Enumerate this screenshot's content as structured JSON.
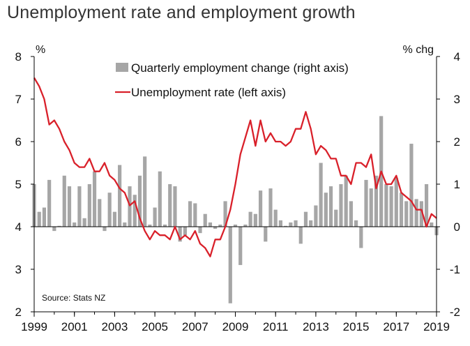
{
  "chart_data": {
    "type": "bar+line",
    "title": "Unemployment rate and employment growth",
    "left_axis_unit": "%",
    "right_axis_unit": "% chg",
    "left_ylim": [
      2,
      8
    ],
    "right_ylim": [
      -2,
      4
    ],
    "left_ticks": [
      "2",
      "3",
      "4",
      "5",
      "6",
      "7",
      "8"
    ],
    "right_ticks": [
      "-2",
      "-1",
      "0",
      "1",
      "2",
      "3",
      "4"
    ],
    "x_ticks": [
      "1999",
      "2001",
      "2003",
      "2005",
      "2007",
      "2009",
      "2011",
      "2013",
      "2015",
      "2017",
      "2019"
    ],
    "x_range": [
      1999.0,
      2019.0
    ],
    "source": "Source: Stats NZ",
    "bars": {
      "name": "Quarterly employment change (right axis)",
      "color": "#a6a6a6",
      "x": [
        1999.0,
        1999.25,
        1999.5,
        1999.75,
        2000.0,
        2000.25,
        2000.5,
        2000.75,
        2001.0,
        2001.25,
        2001.5,
        2001.75,
        2002.0,
        2002.25,
        2002.5,
        2002.75,
        2003.0,
        2003.25,
        2003.5,
        2003.75,
        2004.0,
        2004.25,
        2004.5,
        2004.75,
        2005.0,
        2005.25,
        2005.5,
        2005.75,
        2006.0,
        2006.25,
        2006.5,
        2006.75,
        2007.0,
        2007.25,
        2007.5,
        2007.75,
        2008.0,
        2008.25,
        2008.5,
        2008.75,
        2009.0,
        2009.25,
        2009.5,
        2009.75,
        2010.0,
        2010.25,
        2010.5,
        2010.75,
        2011.0,
        2011.25,
        2011.5,
        2011.75,
        2012.0,
        2012.25,
        2012.5,
        2012.75,
        2013.0,
        2013.25,
        2013.5,
        2013.75,
        2014.0,
        2014.25,
        2014.5,
        2014.75,
        2015.0,
        2015.25,
        2015.5,
        2015.75,
        2016.0,
        2016.25,
        2016.5,
        2016.75,
        2017.0,
        2017.25,
        2017.5,
        2017.75,
        2018.0,
        2018.25,
        2018.5,
        2018.75,
        2019.0
      ],
      "values": [
        1.0,
        0.35,
        0.45,
        1.1,
        -0.1,
        0.02,
        1.2,
        0.95,
        0.1,
        0.95,
        0.2,
        1.0,
        1.3,
        0.65,
        -0.1,
        0.8,
        0.35,
        1.45,
        0.1,
        0.95,
        0.75,
        1.2,
        1.65,
        0.05,
        0.45,
        1.3,
        0.05,
        1.0,
        0.95,
        -0.35,
        -0.2,
        0.6,
        0.55,
        -0.15,
        0.3,
        0.1,
        -0.05,
        0.05,
        0.6,
        -1.8,
        0.05,
        -0.9,
        0.05,
        0.35,
        0.3,
        0.85,
        -0.35,
        0.9,
        0.4,
        0.15,
        0.02,
        0.1,
        0.15,
        -0.4,
        0.35,
        0.15,
        0.5,
        1.5,
        0.8,
        0.95,
        0.4,
        1.0,
        1.2,
        0.6,
        0.15,
        -0.5,
        1.1,
        0.9,
        1.2,
        2.6,
        1.0,
        0.95,
        1.15,
        0.8,
        0.6,
        1.95,
        0.65,
        0.6,
        1.0,
        0.1,
        -0.2
      ]
    },
    "line": {
      "name": "Unemployment rate (left axis)",
      "color": "#d9202a",
      "x": [
        1999.0,
        1999.25,
        1999.5,
        1999.75,
        2000.0,
        2000.25,
        2000.5,
        2000.75,
        2001.0,
        2001.25,
        2001.5,
        2001.75,
        2002.0,
        2002.25,
        2002.5,
        2002.75,
        2003.0,
        2003.25,
        2003.5,
        2003.75,
        2004.0,
        2004.25,
        2004.5,
        2004.75,
        2005.0,
        2005.25,
        2005.5,
        2005.75,
        2006.0,
        2006.25,
        2006.5,
        2006.75,
        2007.0,
        2007.25,
        2007.5,
        2007.75,
        2008.0,
        2008.25,
        2008.5,
        2008.75,
        2009.0,
        2009.25,
        2009.5,
        2009.75,
        2010.0,
        2010.25,
        2010.5,
        2010.75,
        2011.0,
        2011.25,
        2011.5,
        2011.75,
        2012.0,
        2012.25,
        2012.5,
        2012.75,
        2013.0,
        2013.25,
        2013.5,
        2013.75,
        2014.0,
        2014.25,
        2014.5,
        2014.75,
        2015.0,
        2015.25,
        2015.5,
        2015.75,
        2016.0,
        2016.25,
        2016.5,
        2016.75,
        2017.0,
        2017.25,
        2017.5,
        2017.75,
        2018.0,
        2018.25,
        2018.5,
        2018.75,
        2019.0
      ],
      "values": [
        7.5,
        7.3,
        7.0,
        6.4,
        6.5,
        6.3,
        6.0,
        5.8,
        5.5,
        5.4,
        5.4,
        5.6,
        5.3,
        5.3,
        5.5,
        5.2,
        5.1,
        4.9,
        4.8,
        4.5,
        4.6,
        4.2,
        3.9,
        3.7,
        3.9,
        3.8,
        3.8,
        3.7,
        4.0,
        3.7,
        3.8,
        3.7,
        3.9,
        3.6,
        3.5,
        3.3,
        3.7,
        3.7,
        4.0,
        4.4,
        5.0,
        5.7,
        6.1,
        6.5,
        5.9,
        6.5,
        6.0,
        6.2,
        6.0,
        6.0,
        5.9,
        6.0,
        6.3,
        6.3,
        6.7,
        6.3,
        5.7,
        5.9,
        5.8,
        5.6,
        5.6,
        5.2,
        5.2,
        5.0,
        5.5,
        5.5,
        5.4,
        5.7,
        4.9,
        5.3,
        5.0,
        5.0,
        5.2,
        4.8,
        4.7,
        4.6,
        4.4,
        4.4,
        4.0,
        4.3,
        4.2
      ]
    },
    "legend": {
      "placement": "top-center",
      "bar_label": "Quarterly employment change (right axis)",
      "line_label": "Unemployment rate (left axis)"
    }
  }
}
